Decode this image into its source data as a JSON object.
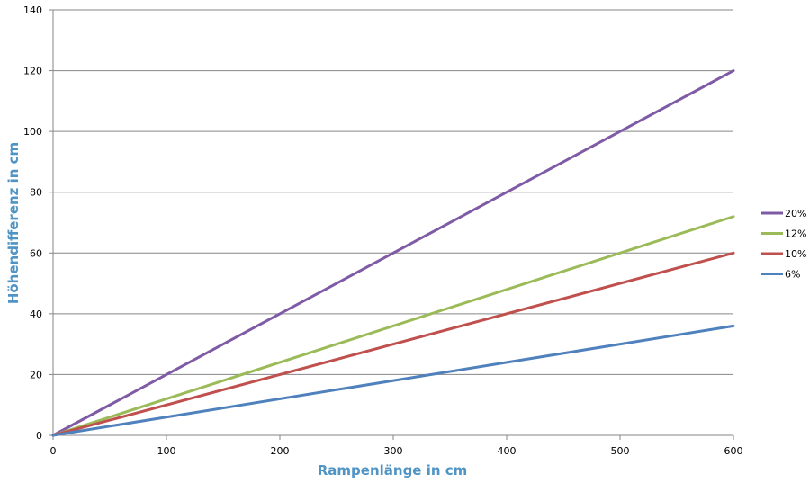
{
  "chart_data": {
    "type": "line",
    "title": "",
    "xlabel": "Rampenlänge in  cm",
    "ylabel": "Höhendifferenz in  cm",
    "xlim": [
      0,
      600
    ],
    "ylim": [
      0,
      140
    ],
    "xticks": [
      0,
      100,
      200,
      300,
      400,
      500,
      600
    ],
    "yticks": [
      0,
      20,
      40,
      60,
      80,
      100,
      120,
      140
    ],
    "grid": "horizontal",
    "legend_position": "right",
    "x": [
      0,
      600
    ],
    "series": [
      {
        "name": "20%",
        "color": "#7f5ba6",
        "values": [
          0,
          120
        ]
      },
      {
        "name": "12%",
        "color": "#9bbb59",
        "values": [
          0,
          72
        ]
      },
      {
        "name": "10%",
        "color": "#c0504d",
        "values": [
          0,
          60
        ]
      },
      {
        "name": "6%",
        "color": "#4f81bd",
        "values": [
          0,
          36
        ]
      }
    ],
    "axis_title_color": "#4f94c4",
    "grid_color": "#868686"
  }
}
